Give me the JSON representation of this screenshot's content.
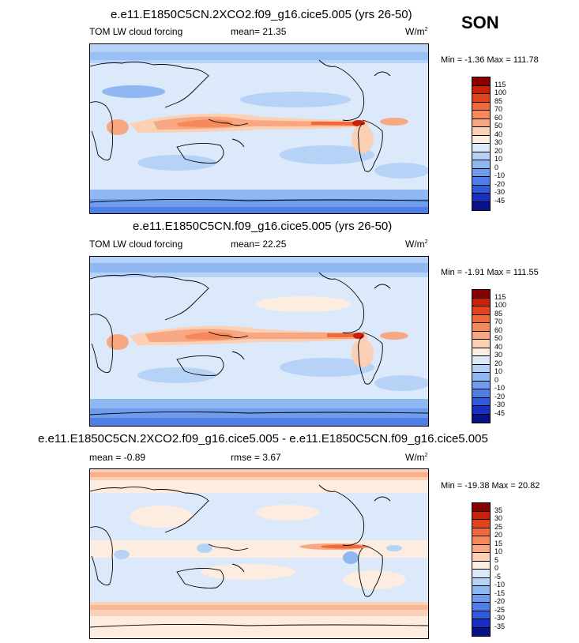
{
  "season": "SON",
  "panels": [
    {
      "title": "e.e11.E1850C5CN.2XCO2.f09_g16.cice5.005 (yrs 26-50)",
      "left_label": "TOM LW cloud forcing",
      "center_label": "mean=  21.35",
      "units_base": "W/m",
      "units_exp": "2",
      "minmax": "Min =  -1.36 Max = 111.78",
      "legend": {
        "labels": [
          "115",
          "100",
          "85",
          "70",
          "60",
          "50",
          "40",
          "30",
          "20",
          "10",
          "0",
          "-10",
          "-20",
          "-30",
          "-45"
        ],
        "colors": [
          "#8a0000",
          "#c8200a",
          "#e0441c",
          "#ee6a3a",
          "#f5895a",
          "#f7a882",
          "#fbd0b4",
          "#fdece0",
          "#dbe9fa",
          "#b6d3f7",
          "#8fb8f2",
          "#6f9cec",
          "#4f7ee6",
          "#2f5adc",
          "#1a2fc0",
          "#0a128a"
        ]
      }
    },
    {
      "title": "e.e11.E1850C5CN.f09_g16.cice5.005 (yrs 26-50)",
      "left_label": "TOM LW cloud forcing",
      "center_label": "mean=  22.25",
      "units_base": "W/m",
      "units_exp": "2",
      "minmax": "Min =  -1.91 Max = 111.55",
      "legend": {
        "labels": [
          "115",
          "100",
          "85",
          "70",
          "60",
          "50",
          "40",
          "30",
          "20",
          "10",
          "0",
          "-10",
          "-20",
          "-30",
          "-45"
        ],
        "colors": [
          "#8a0000",
          "#c8200a",
          "#e0441c",
          "#ee6a3a",
          "#f5895a",
          "#f7a882",
          "#fbd0b4",
          "#fdece0",
          "#dbe9fa",
          "#b6d3f7",
          "#8fb8f2",
          "#6f9cec",
          "#4f7ee6",
          "#2f5adc",
          "#1a2fc0",
          "#0a128a"
        ]
      }
    },
    {
      "title": "e.e11.E1850C5CN.2XCO2.f09_g16.cice5.005 - e.e11.E1850C5CN.f09_g16.cice5.005",
      "left_label": "mean =  -0.89",
      "center_label": "rmse =   3.67",
      "units_base": "W/m",
      "units_exp": "2",
      "minmax": "Min = -19.38 Max =  20.82",
      "legend": {
        "labels": [
          "35",
          "30",
          "25",
          "20",
          "15",
          "10",
          "5",
          "0",
          "-5",
          "-10",
          "-15",
          "-20",
          "-25",
          "-30",
          "-35"
        ],
        "colors": [
          "#8a0000",
          "#c8200a",
          "#e0441c",
          "#ee6a3a",
          "#f5895a",
          "#f7a882",
          "#fbd0b4",
          "#fdece0",
          "#dbe9fa",
          "#b6d3f7",
          "#8fb8f2",
          "#6f9cec",
          "#4f7ee6",
          "#2f5adc",
          "#1a2fc0",
          "#0a128a"
        ]
      }
    }
  ]
}
